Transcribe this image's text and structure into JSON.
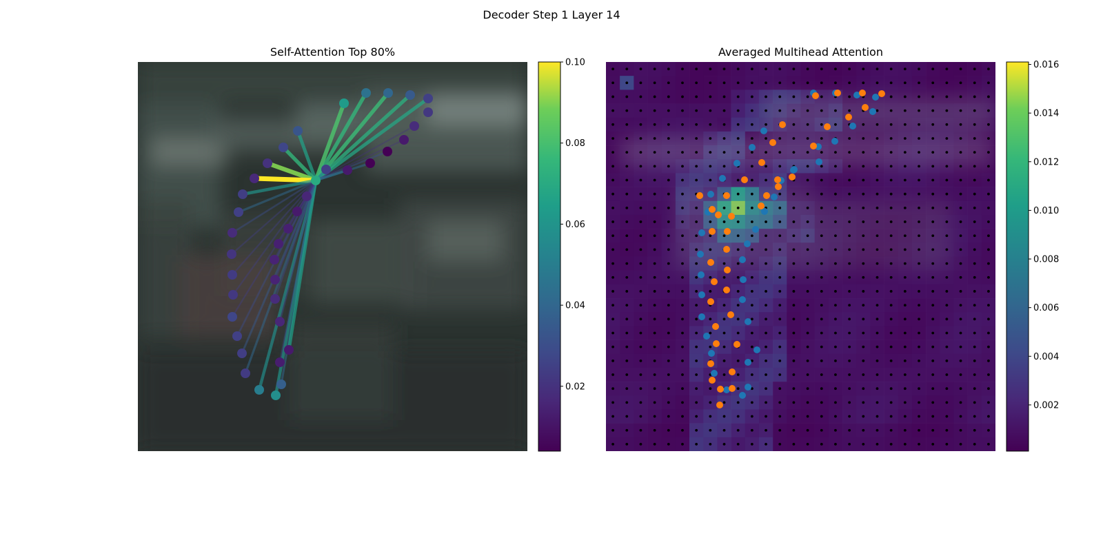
{
  "figure": {
    "title": "Decoder Step 1 Layer 14"
  },
  "chart_data": [
    {
      "type": "scatter",
      "title": "Self-Attention Top 80%",
      "description_kind": "keypoint attention graph over blurred car image",
      "query_point": [
        258,
        172
      ],
      "points": [
        [
          299,
          60
        ],
        [
          331,
          45
        ],
        [
          363,
          45
        ],
        [
          395,
          48
        ],
        [
          421,
          53
        ],
        [
          421,
          73
        ],
        [
          401,
          93
        ],
        [
          386,
          113
        ],
        [
          362,
          130
        ],
        [
          337,
          147
        ],
        [
          304,
          157
        ],
        [
          258,
          172
        ],
        [
          232,
          100
        ],
        [
          211,
          124
        ],
        [
          188,
          147
        ],
        [
          169,
          169
        ],
        [
          152,
          192
        ],
        [
          146,
          218
        ],
        [
          137,
          248
        ],
        [
          136,
          279
        ],
        [
          137,
          309
        ],
        [
          138,
          338
        ],
        [
          137,
          370
        ],
        [
          144,
          398
        ],
        [
          151,
          423
        ],
        [
          156,
          452
        ],
        [
          176,
          476
        ],
        [
          200,
          484
        ],
        [
          208,
          468
        ],
        [
          206,
          436
        ],
        [
          219,
          418
        ],
        [
          206,
          377
        ],
        [
          199,
          344
        ],
        [
          199,
          316
        ],
        [
          198,
          287
        ],
        [
          204,
          264
        ],
        [
          218,
          242
        ],
        [
          231,
          217
        ],
        [
          245,
          195
        ],
        [
          273,
          156
        ]
      ],
      "point_values": [
        0.063,
        0.045,
        0.04,
        0.035,
        0.025,
        0.022,
        0.018,
        0.012,
        0.003,
        0.004,
        0.012,
        0.07,
        0.033,
        0.027,
        0.02,
        0.017,
        0.024,
        0.025,
        0.018,
        0.021,
        0.023,
        0.022,
        0.027,
        0.025,
        0.024,
        0.023,
        0.05,
        0.058,
        0.037,
        0.013,
        0.012,
        0.016,
        0.018,
        0.015,
        0.015,
        0.014,
        0.014,
        0.012,
        0.016,
        0.025
      ],
      "edge_weights": [
        0.081,
        0.075,
        0.077,
        0.072,
        0.068,
        0.0,
        0.02,
        0.02,
        0.03,
        0.04,
        0.045,
        0.0,
        0.066,
        0.075,
        0.09,
        0.1,
        0.06,
        0.04,
        0.03,
        0.025,
        0.025,
        0.025,
        0.025,
        0.03,
        0.035,
        0.04,
        0.058,
        0.06,
        0.04,
        0.03,
        0.065,
        0.03,
        0.028,
        0.025,
        0.025,
        0.02,
        0.02,
        0.02,
        0.02,
        0.05
      ],
      "colorbar": {
        "ticks": [
          0.02,
          0.04,
          0.06,
          0.08,
          0.1
        ],
        "tick_labels": [
          "0.02",
          "0.04",
          "0.06",
          "0.08",
          "0.10"
        ],
        "range": [
          0.004,
          0.1
        ]
      },
      "background": "blurred image of parked vehicles"
    },
    {
      "type": "heatmap",
      "title": "Averaged Multihead Attention",
      "grid_size": 28,
      "blue_points": [
        [
          301,
          45
        ],
        [
          333,
          45
        ],
        [
          364,
          48
        ],
        [
          391,
          51
        ],
        [
          387,
          72
        ],
        [
          358,
          93
        ],
        [
          332,
          115
        ],
        [
          308,
          123
        ],
        [
          273,
          156
        ],
        [
          253,
          172
        ],
        [
          229,
          100
        ],
        [
          212,
          124
        ],
        [
          190,
          147
        ],
        [
          169,
          169
        ],
        [
          152,
          192
        ],
        [
          148,
          218
        ],
        [
          139,
          248
        ],
        [
          137,
          279
        ],
        [
          138,
          309
        ],
        [
          139,
          338
        ],
        [
          139,
          370
        ],
        [
          146,
          398
        ],
        [
          153,
          423
        ],
        [
          157,
          452
        ],
        [
          175,
          476
        ],
        [
          198,
          484
        ],
        [
          206,
          472
        ],
        [
          206,
          436
        ],
        [
          219,
          418
        ],
        [
          206,
          377
        ],
        [
          198,
          345
        ],
        [
          199,
          316
        ],
        [
          198,
          287
        ],
        [
          205,
          264
        ],
        [
          217,
          243
        ],
        [
          230,
          217
        ],
        [
          244,
          196
        ],
        [
          254,
          172
        ],
        [
          272,
          157
        ],
        [
          309,
          145
        ]
      ],
      "orange_points": [
        [
          304,
          49
        ],
        [
          336,
          45
        ],
        [
          372,
          45
        ],
        [
          400,
          46
        ],
        [
          376,
          66
        ],
        [
          352,
          80
        ],
        [
          321,
          94
        ],
        [
          301,
          122
        ],
        [
          270,
          167
        ],
        [
          250,
          181
        ],
        [
          226,
          146
        ],
        [
          201,
          171
        ],
        [
          175,
          194
        ],
        [
          163,
          222
        ],
        [
          136,
          194
        ],
        [
          154,
          214
        ],
        [
          154,
          246
        ],
        [
          152,
          291
        ],
        [
          157,
          319
        ],
        [
          152,
          348
        ],
        [
          159,
          384
        ],
        [
          160,
          409
        ],
        [
          152,
          438
        ],
        [
          154,
          462
        ],
        [
          165,
          498
        ],
        [
          183,
          474
        ],
        [
          166,
          475
        ],
        [
          183,
          450
        ],
        [
          190,
          410
        ],
        [
          181,
          367
        ],
        [
          175,
          331
        ],
        [
          176,
          302
        ],
        [
          175,
          272
        ],
        [
          176,
          246
        ],
        [
          182,
          224
        ],
        [
          225,
          209
        ],
        [
          233,
          194
        ],
        [
          249,
          171
        ],
        [
          256,
          91
        ],
        [
          242,
          117
        ]
      ],
      "colorbar": {
        "ticks": [
          0.002,
          0.004,
          0.006,
          0.008,
          0.01,
          0.012,
          0.014,
          0.016
        ],
        "tick_labels": [
          "0.002",
          "0.004",
          "0.006",
          "0.008",
          "0.010",
          "0.012",
          "0.014",
          "0.016"
        ],
        "range": [
          0.0001,
          0.0161
        ]
      },
      "hot_cells": [
        {
          "col": 9,
          "row": 10,
          "value": 0.0145
        },
        {
          "col": 8,
          "row": 10,
          "value": 0.0108
        },
        {
          "col": 9,
          "row": 9,
          "value": 0.0101
        },
        {
          "col": 8,
          "row": 11,
          "value": 0.0093
        },
        {
          "col": 9,
          "row": 11,
          "value": 0.0092
        },
        {
          "col": 10,
          "row": 10,
          "value": 0.0088
        },
        {
          "col": 11,
          "row": 10,
          "value": 0.0075
        },
        {
          "col": 10,
          "row": 9,
          "value": 0.0075
        },
        {
          "col": 10,
          "row": 11,
          "value": 0.0072
        },
        {
          "col": 11,
          "row": 11,
          "value": 0.0068
        },
        {
          "col": 12,
          "row": 10,
          "value": 0.0062
        },
        {
          "col": 8,
          "row": 12,
          "value": 0.006
        },
        {
          "col": 9,
          "row": 12,
          "value": 0.0058
        },
        {
          "col": 7,
          "row": 10,
          "value": 0.0055
        },
        {
          "col": 7,
          "row": 11,
          "value": 0.0052
        },
        {
          "col": 10,
          "row": 12,
          "value": 0.005
        },
        {
          "col": 8,
          "row": 9,
          "value": 0.005
        },
        {
          "col": 12,
          "row": 11,
          "value": 0.0048
        },
        {
          "col": 1,
          "row": 1,
          "value": 0.004
        }
      ],
      "colors": {
        "blue": "#1f77b4",
        "orange": "#ff7f0e"
      }
    }
  ]
}
